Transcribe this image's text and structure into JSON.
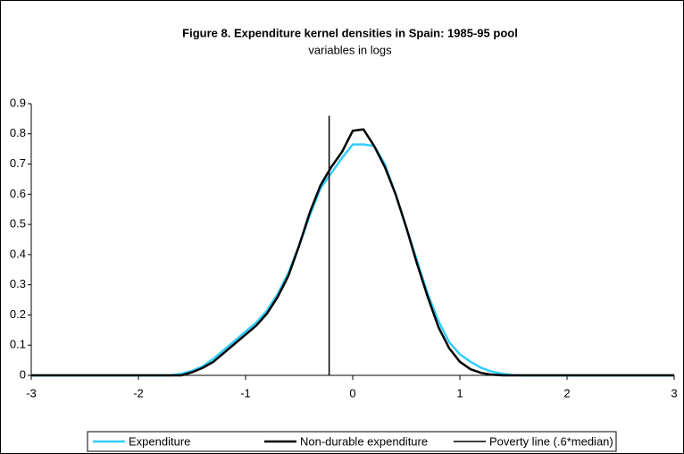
{
  "chart_data": {
    "type": "line",
    "title": "Figure 8. Expenditure kernel densities in Spain: 1985-95 pool",
    "subtitle": "variables in logs",
    "x": [
      -3,
      -1.8,
      -1.7,
      -1.6,
      -1.5,
      -1.4,
      -1.3,
      -1.2,
      -1.1,
      -1.0,
      -0.9,
      -0.8,
      -0.7,
      -0.6,
      -0.5,
      -0.4,
      -0.3,
      -0.2,
      -0.1,
      0,
      0.1,
      0.2,
      0.3,
      0.4,
      0.5,
      0.6,
      0.7,
      0.8,
      0.9,
      1.0,
      1.1,
      1.2,
      1.3,
      1.4,
      1.5,
      1.6,
      3
    ],
    "series": [
      {
        "name": "Expenditure",
        "color": "#33ccff",
        "width": 2.5,
        "values": [
          0,
          0,
          0,
          0.005,
          0.015,
          0.03,
          0.055,
          0.085,
          0.115,
          0.145,
          0.175,
          0.215,
          0.27,
          0.34,
          0.43,
          0.53,
          0.62,
          0.67,
          0.72,
          0.765,
          0.765,
          0.76,
          0.7,
          0.6,
          0.49,
          0.38,
          0.27,
          0.18,
          0.11,
          0.07,
          0.045,
          0.025,
          0.012,
          0.005,
          0.001,
          0,
          0
        ]
      },
      {
        "name": "Non-durable expenditure",
        "color": "#000000",
        "width": 2.5,
        "values": [
          0,
          0,
          0,
          0,
          0.01,
          0.025,
          0.045,
          0.075,
          0.105,
          0.135,
          0.165,
          0.205,
          0.26,
          0.33,
          0.43,
          0.54,
          0.63,
          0.69,
          0.74,
          0.81,
          0.815,
          0.76,
          0.69,
          0.6,
          0.49,
          0.37,
          0.26,
          0.16,
          0.09,
          0.045,
          0.02,
          0.008,
          0.002,
          0,
          0,
          0,
          0
        ]
      },
      {
        "name": "Poverty line (.6*median)",
        "color": "#000000",
        "width": 1.5,
        "x": [
          -0.22,
          -0.22
        ],
        "values": [
          0,
          0.86
        ]
      }
    ],
    "xlim": [
      -3,
      3
    ],
    "xticks": [
      -3,
      -2,
      -1,
      0,
      1,
      2,
      3
    ],
    "ylim": [
      0,
      0.9
    ],
    "yticks": [
      0,
      0.1,
      0.2,
      0.3,
      0.4,
      0.5,
      0.6,
      0.7,
      0.8,
      0.9
    ],
    "grid": false,
    "legend": "bottom"
  }
}
